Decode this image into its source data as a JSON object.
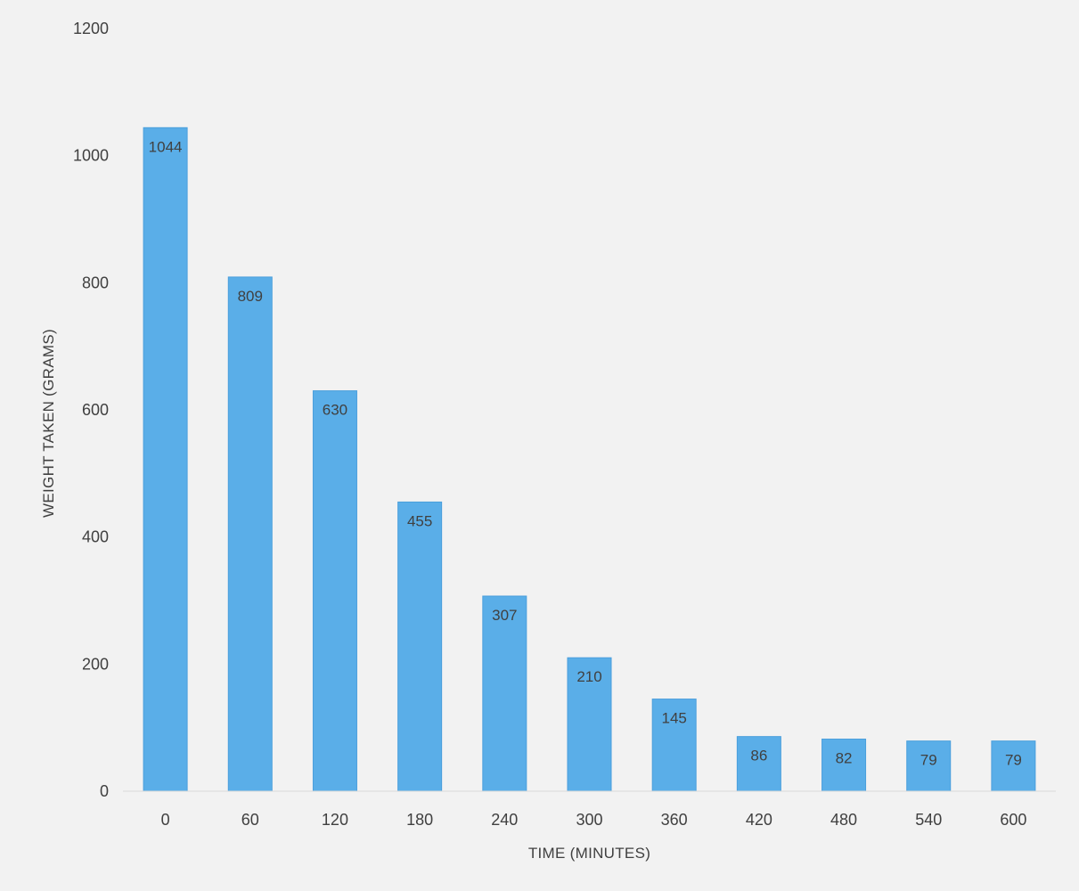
{
  "chart_data": {
    "type": "bar",
    "title": "",
    "xlabel": "TIME (MINUTES)",
    "ylabel": "WEIGHT TAKEN (GRAMS)",
    "categories": [
      "0",
      "60",
      "120",
      "180",
      "240",
      "300",
      "360",
      "420",
      "480",
      "540",
      "600"
    ],
    "values": [
      1044,
      809,
      630,
      455,
      307,
      210,
      145,
      86,
      82,
      79,
      79
    ],
    "ylim": [
      0,
      1200
    ],
    "yticks": [
      0,
      200,
      400,
      600,
      800,
      1000,
      1200
    ],
    "grid": false,
    "legend": "none",
    "data_labels": true,
    "colors": {
      "bar": "#5aaee8",
      "bar_edge": "#4b9fdc",
      "text": "#404040",
      "background": "#f2f2f2"
    }
  }
}
